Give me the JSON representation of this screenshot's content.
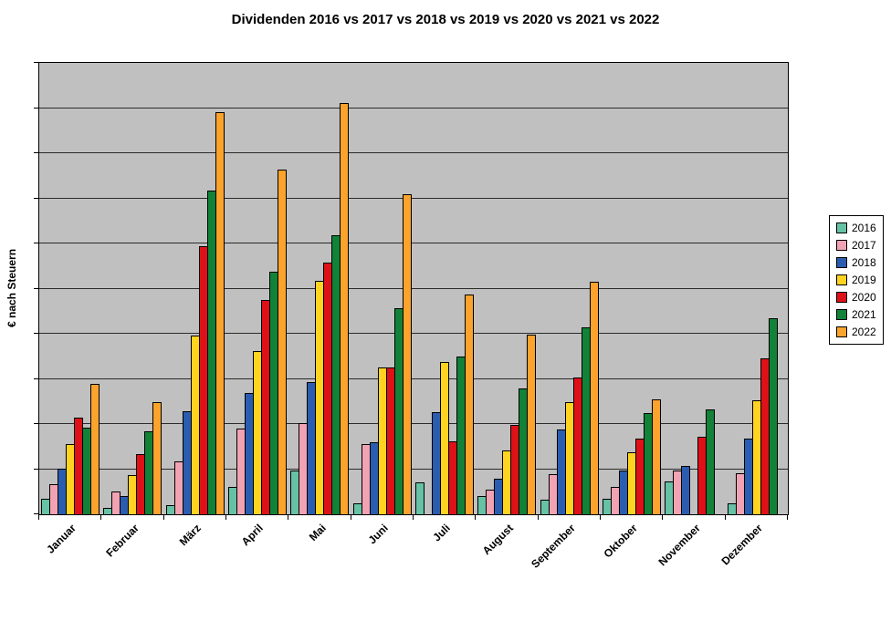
{
  "chart_data": {
    "type": "bar",
    "title": "Dividenden 2016 vs 2017 vs 2018 vs 2019 vs 2020 vs 2021 vs 2022",
    "xlabel": "",
    "ylabel": "€ nach Steuern",
    "ylim": [
      0,
      1000
    ],
    "grid": true,
    "grid_step": 100,
    "y_tick_labels_shown": false,
    "legend_position": "right",
    "plot_background": "#C0C0C0",
    "categories": [
      "Januar",
      "Februar",
      "März",
      "April",
      "Mai",
      "Juni",
      "Juli",
      "August",
      "September",
      "Oktober",
      "November",
      "Dezember"
    ],
    "series": [
      {
        "name": "2016",
        "color": "#66C2A5",
        "values": [
          34,
          14,
          20,
          61,
          97,
          24,
          71,
          40,
          32,
          34,
          73,
          24
        ]
      },
      {
        "name": "2017",
        "color": "#F2A3B3",
        "values": [
          67,
          50,
          117,
          190,
          202,
          156,
          0,
          55,
          89,
          61,
          97,
          91
        ]
      },
      {
        "name": "2018",
        "color": "#2A5DB0",
        "values": [
          101,
          40,
          228,
          269,
          293,
          160,
          226,
          79,
          188,
          97,
          107,
          168
        ]
      },
      {
        "name": "2019",
        "color": "#FFD320",
        "values": [
          156,
          87,
          396,
          362,
          517,
          325,
          337,
          141,
          248,
          137,
          0,
          253
        ]
      },
      {
        "name": "2020",
        "color": "#DE1118",
        "values": [
          214,
          133,
          594,
          475,
          558,
          325,
          162,
          198,
          303,
          168,
          172,
          345
        ]
      },
      {
        "name": "2021",
        "color": "#118238",
        "values": [
          192,
          184,
          717,
          537,
          618,
          457,
          349,
          279,
          414,
          224,
          232,
          434
        ]
      },
      {
        "name": "2022",
        "color": "#FBA32C",
        "values": [
          289,
          248,
          891,
          764,
          911,
          709,
          487,
          398,
          515,
          255,
          0,
          0
        ]
      }
    ]
  }
}
